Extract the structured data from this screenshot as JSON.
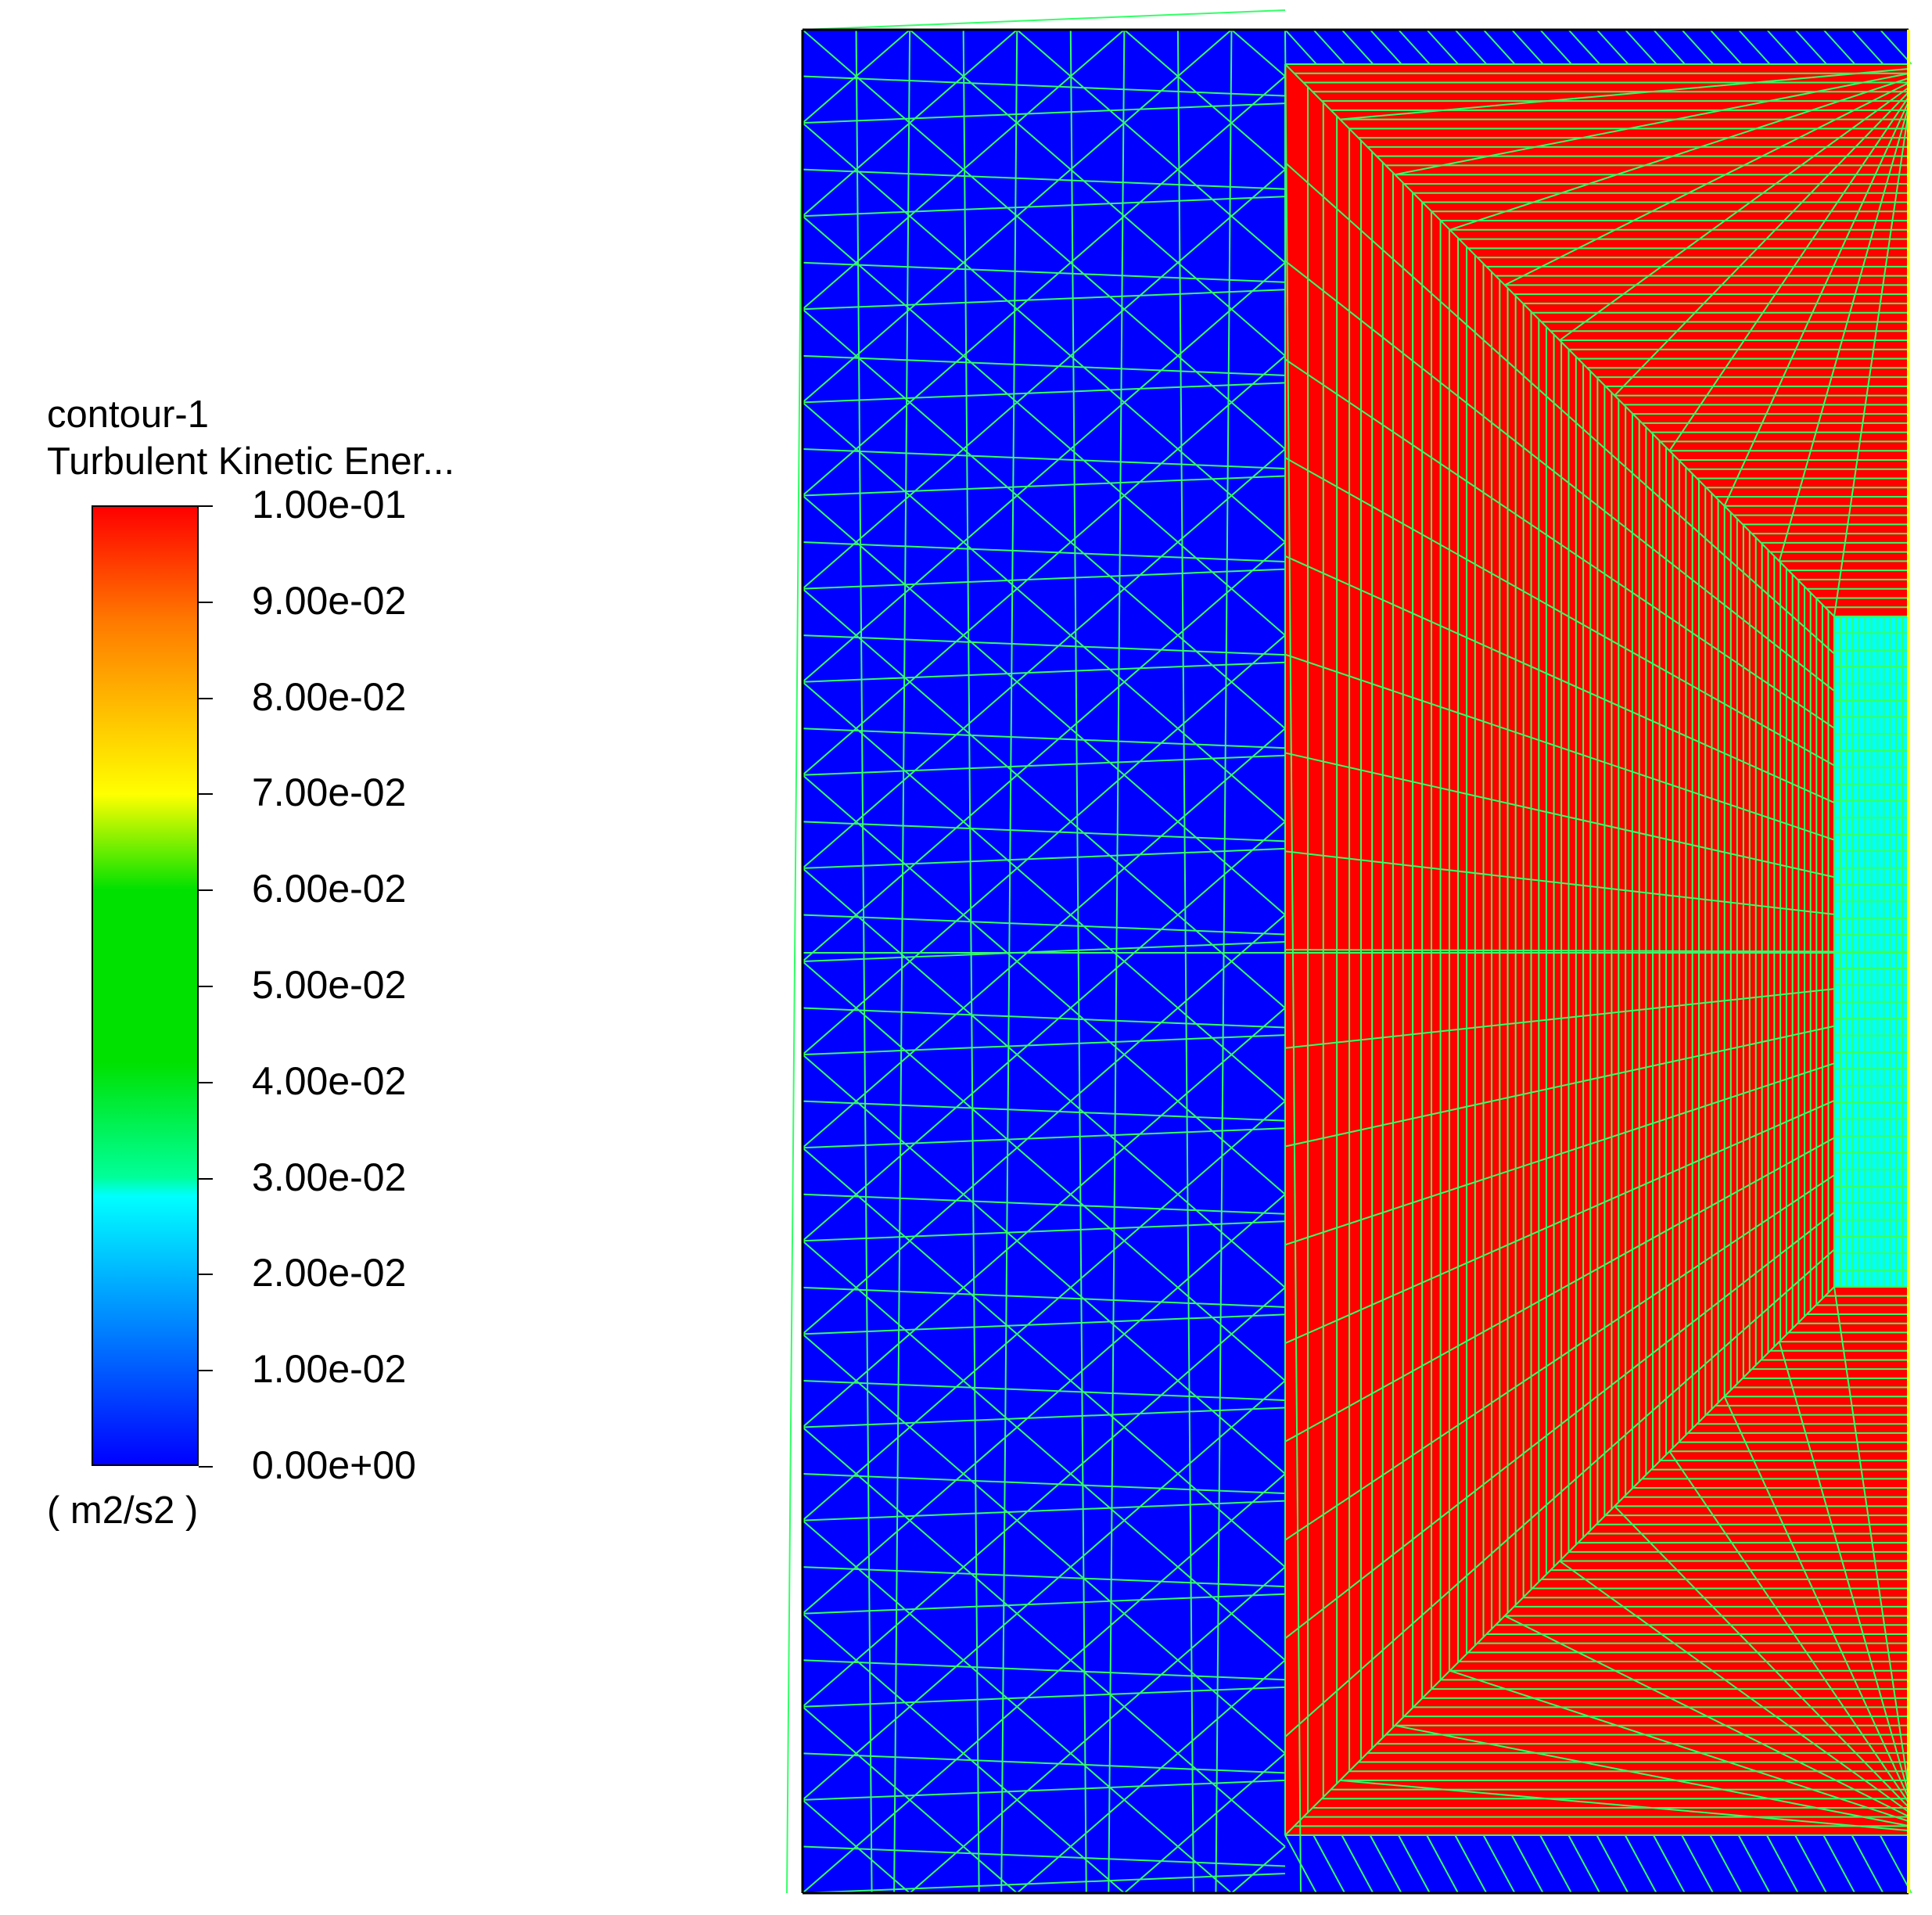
{
  "legend": {
    "title": "contour-1",
    "variable": "Turbulent Kinetic Ener...",
    "units": "( m2/s2 )",
    "ticks": [
      "1.00e-01",
      "9.00e-02",
      "8.00e-02",
      "7.00e-02",
      "6.00e-02",
      "5.00e-02",
      "4.00e-02",
      "3.00e-02",
      "2.00e-02",
      "1.00e-02",
      "0.00e+00"
    ],
    "colors": {
      "top": "#ff0000",
      "orange": "#ff7a00",
      "yellow": "#ffff00",
      "green": "#00e100",
      "cyan": "#00ffff",
      "blue": "#0000ff"
    }
  },
  "mesh": {
    "background_color": "#0000ff",
    "core_color": "#ff0000",
    "inner_color": "#00ffff",
    "line_color": "#33ff66",
    "edge_color": "#ffff00"
  }
}
